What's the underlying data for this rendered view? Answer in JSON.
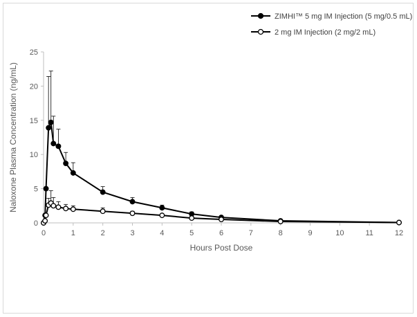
{
  "chart_data": {
    "type": "line",
    "xlabel": "Hours Post Dose",
    "ylabel": "Naloxone Plasma Concentration (ng/mL)",
    "xlim": [
      0,
      12
    ],
    "ylim": [
      0,
      25
    ],
    "x_ticks": [
      0,
      1,
      2,
      3,
      4,
      5,
      6,
      7,
      8,
      9,
      10,
      11,
      12
    ],
    "y_ticks": [
      0,
      5,
      10,
      15,
      20,
      25
    ],
    "grid": false,
    "legend_position": "top-right",
    "series": [
      {
        "name": "ZIMHI™ 5 mg IM Injection (5 mg/0.5 mL)",
        "marker": "filled-circle",
        "color": "#000000",
        "x": [
          0,
          0.05,
          0.083,
          0.167,
          0.25,
          0.333,
          0.5,
          0.75,
          1,
          2,
          3,
          4,
          5,
          6,
          8,
          12
        ],
        "y": [
          0,
          1.1,
          5.0,
          13.9,
          14.7,
          11.6,
          11.2,
          8.7,
          7.3,
          4.5,
          3.1,
          2.2,
          1.3,
          0.8,
          0.3,
          0.05
        ],
        "error": [
          0,
          0,
          0,
          7.5,
          7.5,
          4.0,
          2.5,
          1.6,
          1.5,
          0.8,
          0.6,
          0.4,
          0.3,
          0.2,
          0.1,
          0
        ]
      },
      {
        "name": "2 mg IM Injection (2 mg/2 mL)",
        "marker": "open-circle",
        "color": "#000000",
        "x": [
          0,
          0.05,
          0.083,
          0.167,
          0.25,
          0.333,
          0.5,
          0.75,
          1,
          2,
          3,
          4,
          5,
          6,
          8,
          12
        ],
        "y": [
          0,
          0.3,
          1.1,
          2.6,
          2.9,
          2.5,
          2.3,
          2.1,
          2.0,
          1.7,
          1.4,
          1.1,
          0.7,
          0.5,
          0.2,
          0.05
        ],
        "error": [
          0,
          0,
          0,
          1.0,
          1.8,
          1.2,
          0.8,
          0.6,
          0.5,
          0.5,
          0.3,
          0.2,
          0.2,
          0.1,
          0.05,
          0
        ]
      }
    ]
  }
}
